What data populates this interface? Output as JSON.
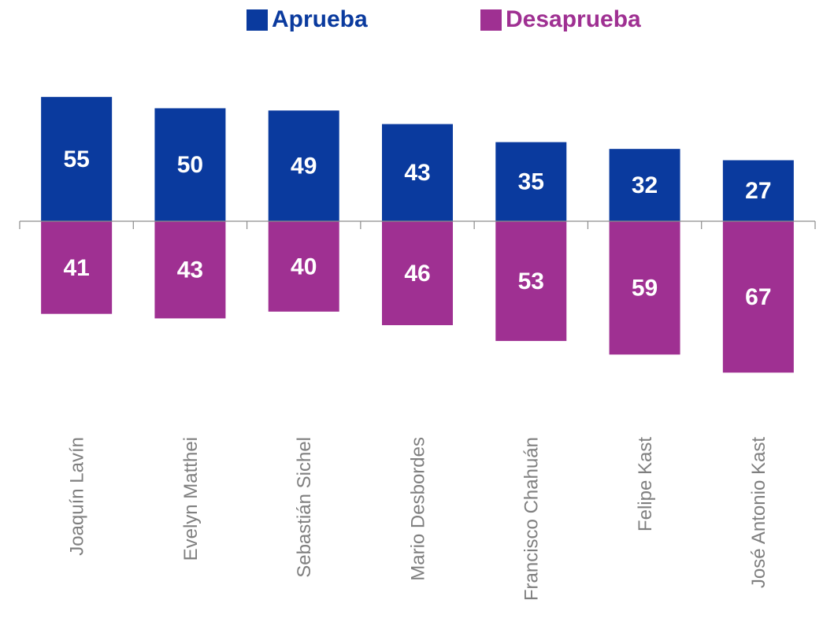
{
  "chart_data": {
    "type": "bar",
    "categories": [
      "Joaquín Lavín",
      "Evelyn Matthei",
      "Sebastián Sichel",
      "Mario Desbordes",
      "Francisco Chahuán",
      "Felipe Kast",
      "José Antonio Kast"
    ],
    "series": [
      {
        "name": "Aprueba",
        "color": "#0a3a9e",
        "values": [
          55,
          50,
          49,
          43,
          35,
          32,
          27
        ]
      },
      {
        "name": "Desaprueba",
        "color": "#9f3092",
        "values": [
          41,
          43,
          40,
          46,
          53,
          59,
          67
        ]
      }
    ]
  }
}
